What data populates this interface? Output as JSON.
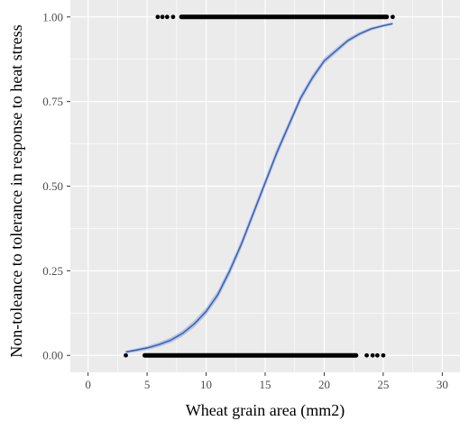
{
  "chart_data": {
    "type": "scatter",
    "xlabel": "Wheat grain area (mm2)",
    "ylabel": "Non-toleance to tolerance in response to heat stress",
    "xlim": [
      -1.5,
      31.5
    ],
    "ylim": [
      -0.05,
      1.05
    ],
    "x_ticks": [
      "0",
      "5",
      "10",
      "15",
      "20",
      "25",
      "30"
    ],
    "x_tick_values": [
      0,
      5,
      10,
      15,
      20,
      25,
      30
    ],
    "y_ticks": [
      "0.00",
      "0.25",
      "0.50",
      "0.75",
      "1.00"
    ],
    "y_tick_values": [
      0,
      0.25,
      0.5,
      0.75,
      1.0
    ],
    "grid": true,
    "panel_color": "#ebebeb",
    "grid_color": "#ffffff",
    "point_color": "#000000",
    "curve_color": "#3366cc",
    "band_color": "#9aa6c8",
    "series": [
      {
        "kind": "points",
        "y": 1.0,
        "x_segments": [
          [
            7.9,
            25.3
          ]
        ],
        "x_points": [
          5.9,
          6.3,
          6.7,
          7.2,
          25.8
        ]
      },
      {
        "kind": "points",
        "y": 0.0,
        "x_segments": [
          [
            4.8,
            22.7
          ]
        ],
        "x_points": [
          3.2,
          23.6,
          24.1,
          24.5,
          25.0
        ]
      },
      {
        "kind": "fit-curve",
        "x": [
          3.2,
          4,
          5,
          6,
          7,
          8,
          9,
          10,
          11,
          12,
          13,
          14,
          15,
          16,
          17,
          18,
          19,
          20,
          21,
          22,
          23,
          24,
          25,
          25.8
        ],
        "y": [
          0.01,
          0.015,
          0.022,
          0.032,
          0.045,
          0.065,
          0.093,
          0.13,
          0.18,
          0.25,
          0.33,
          0.42,
          0.51,
          0.6,
          0.68,
          0.76,
          0.82,
          0.87,
          0.9,
          0.93,
          0.95,
          0.965,
          0.974,
          0.98
        ],
        "ci_halfwidth": [
          0.004,
          0.005,
          0.006,
          0.007,
          0.008,
          0.009,
          0.01,
          0.011,
          0.012,
          0.013,
          0.013,
          0.013,
          0.013,
          0.013,
          0.012,
          0.011,
          0.01,
          0.009,
          0.008,
          0.007,
          0.006,
          0.005,
          0.004,
          0.004
        ]
      }
    ]
  }
}
